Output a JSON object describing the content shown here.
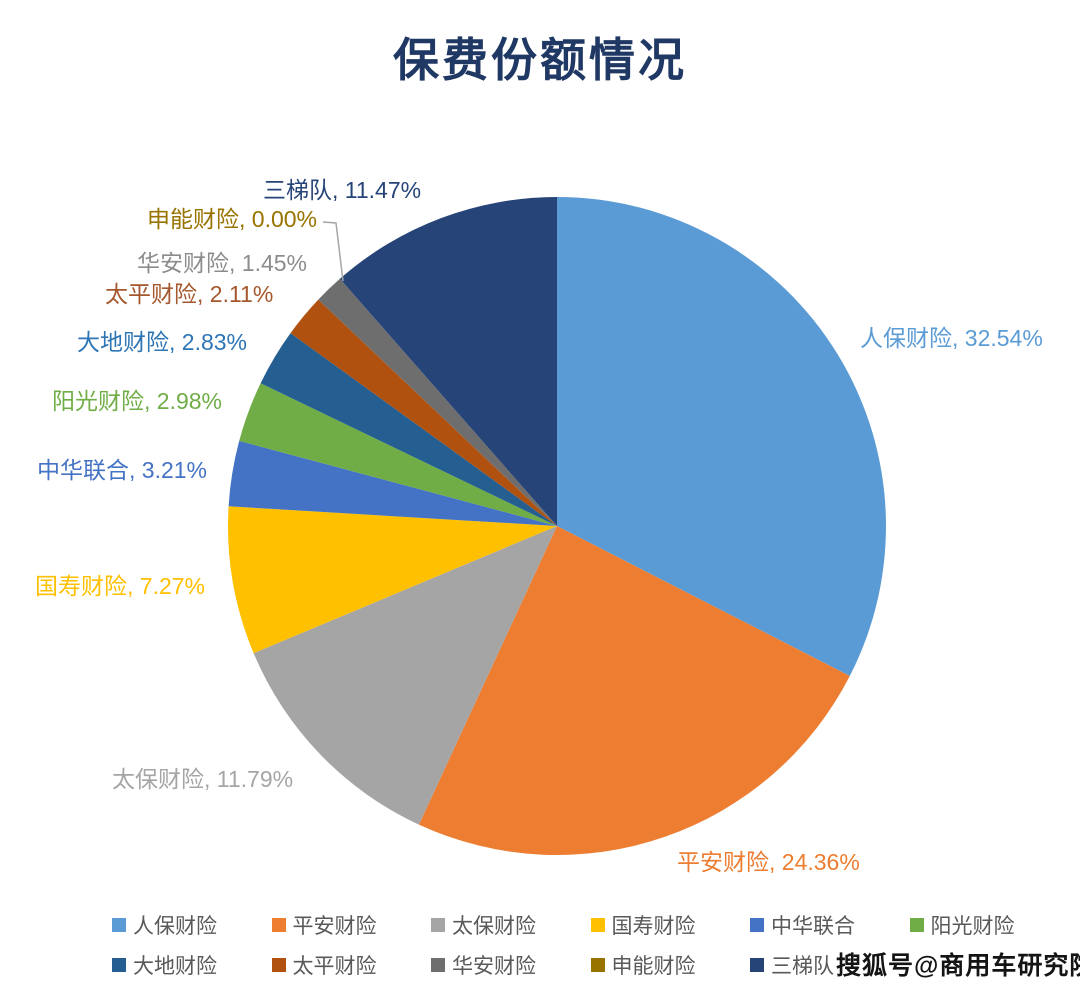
{
  "title": "保费份额情况",
  "watermark": "搜狐号@商用车研究院",
  "chart_data": {
    "type": "pie",
    "title": "保费份额情况",
    "unit": "%",
    "start_angle": "12 o'clock",
    "direction": "clockwise",
    "label_format": "{name}, {value}%",
    "legend": {
      "position": "bottom",
      "rows": 2,
      "items_per_row": 6
    },
    "series": [
      {
        "name": "人保财险",
        "value": 32.54,
        "color": "#5B9BD5",
        "label_color": "#5B9BD5"
      },
      {
        "name": "平安财险",
        "value": 24.36,
        "color": "#ED7D31",
        "label_color": "#ED7D31"
      },
      {
        "name": "太保财险",
        "value": 11.79,
        "color": "#A5A5A5",
        "label_color": "#A5A5A5"
      },
      {
        "name": "国寿财险",
        "value": 7.27,
        "color": "#FFC000",
        "label_color": "#FFC000"
      },
      {
        "name": "中华联合",
        "value": 3.21,
        "color": "#4472C4",
        "label_color": "#4472C4"
      },
      {
        "name": "阳光财险",
        "value": 2.98,
        "color": "#70AD47",
        "label_color": "#70AD47"
      },
      {
        "name": "大地财险",
        "value": 2.83,
        "color": "#255E91",
        "label_color": "#2E75B6"
      },
      {
        "name": "太平财险",
        "value": 2.11,
        "color": "#B0510F",
        "label_color": "#A5572D"
      },
      {
        "name": "华安财险",
        "value": 1.45,
        "color": "#6E6E6E",
        "label_color": "#8C8C8C"
      },
      {
        "name": "申能财险",
        "value": 0.0,
        "color": "#997300",
        "label_color": "#997300"
      },
      {
        "name": "三梯队",
        "value": 11.47,
        "color": "#264478",
        "label_color": "#264478"
      }
    ]
  }
}
